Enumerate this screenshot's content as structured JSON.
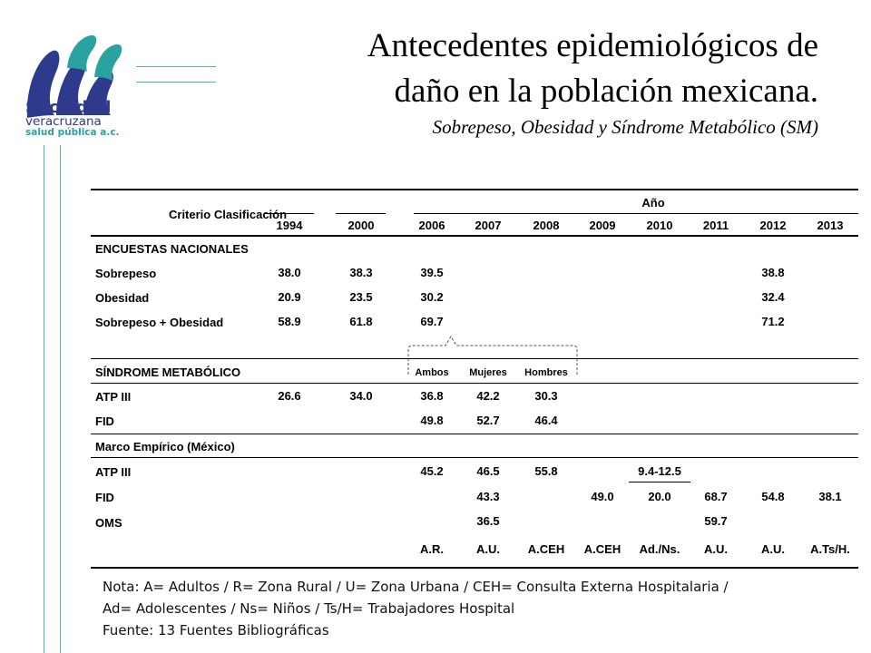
{
  "logo": {
    "line1": "Sociedad",
    "line2": "veracruzana",
    "line3": "salud pública a.c."
  },
  "title": {
    "line1": "Antecedentes epidemiológicos de",
    "line2": "daño en la población mexicana.",
    "subtitle": "Sobrepeso, Obesidad y Síndrome Metabólico (SM)"
  },
  "table": {
    "criterio_header": "Criterio Clasificación",
    "anio_header": "Año",
    "years": [
      "1994",
      "2000",
      "2006",
      "2007",
      "2008",
      "2009",
      "2010",
      "2011",
      "2012",
      "2013"
    ],
    "section1": "ENCUESTAS NACIONALES",
    "rows1": [
      {
        "label": "Sobrepeso",
        "v1994": "38.0",
        "v2000": "38.3",
        "v2006": "39.5",
        "v2012": "38.8"
      },
      {
        "label": "Obesidad",
        "v1994": "20.9",
        "v2000": "23.5",
        "v2006": "30.2",
        "v2012": "32.4"
      },
      {
        "label": "Sobrepeso + Obesidad",
        "v1994": "58.9",
        "v2000": "61.8",
        "v2006": "69.7",
        "v2012": "71.2"
      }
    ],
    "section2": "SÍNDROME METABÓLICO",
    "gender_headers": [
      "Ambos",
      "Mujeres",
      "Hombres"
    ],
    "rows2": [
      {
        "label": "ATP III",
        "v1994": "26.6",
        "v2000": "34.0",
        "v2006": "36.8",
        "v2007": "42.2",
        "v2008": "30.3"
      },
      {
        "label": "FID",
        "v2006": "49.8",
        "v2007": "52.7",
        "v2008": "46.4"
      }
    ],
    "section3": "Marco Empírico (México)",
    "rows3": [
      {
        "label": "ATP III",
        "v2006": "45.2",
        "v2007": "46.5",
        "v2008": "55.8",
        "v2010": "9.4-12.5"
      },
      {
        "label": "FID",
        "v2007": "43.3",
        "v2009": "49.0",
        "v2010": "20.0",
        "v2011": "68.7",
        "v2012": "54.8",
        "v2013": "38.1"
      },
      {
        "label": "OMS",
        "v2007": "36.5",
        "v2011": "59.7"
      }
    ],
    "population": {
      "v2006": "A.R.",
      "v2007": "A.U.",
      "v2008": "A.CEH",
      "v2009": "A.CEH",
      "v2010": "Ad./Ns.",
      "v2011": "A.U.",
      "v2012": "A.U.",
      "v2013": "A.Ts/H."
    }
  },
  "note": {
    "line1": "Nota: A= Adultos / R= Zona Rural / U= Zona Urbana / CEH= Consulta Externa Hospitalaria /",
    "line2": "Ad= Adolescentes  / Ns= Niños / Ts/H= Trabajadores Hospital",
    "line3": "Fuente: 13 Fuentes Bibliográficas"
  },
  "colors": {
    "logo_blue": "#2e3a8c",
    "logo_teal": "#2aa3a0",
    "accent_line": "#4fb3b6"
  }
}
